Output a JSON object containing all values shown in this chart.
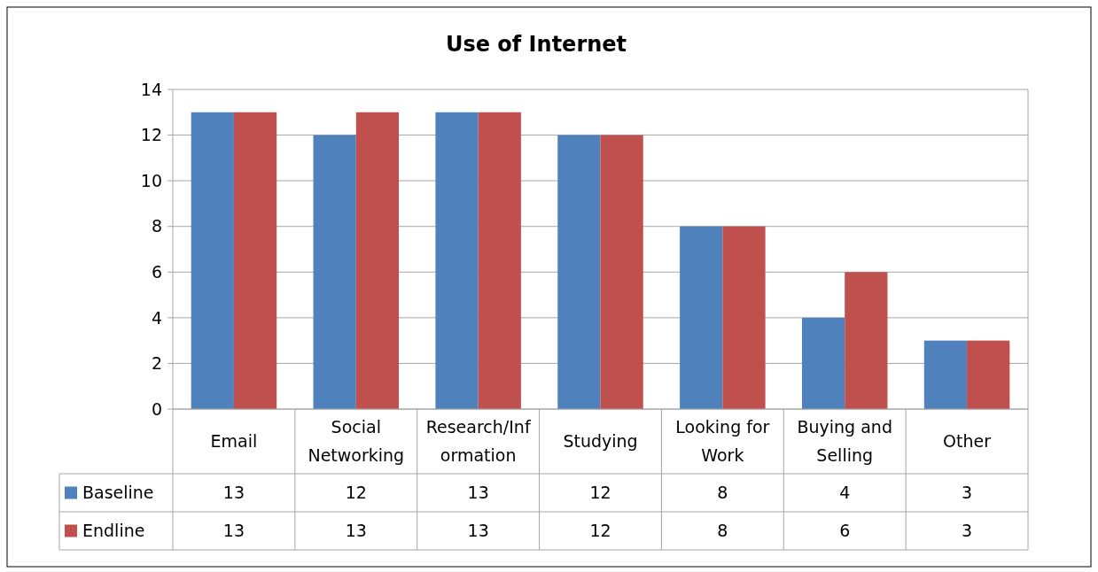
{
  "chart_data": {
    "type": "bar",
    "title": "Use of Internet",
    "categories": [
      "Email",
      "Social Networking",
      "Research/Information",
      "Studying",
      "Looking for Work",
      "Buying and Selling",
      "Other"
    ],
    "series": [
      {
        "name": "Baseline",
        "color": "#4f81bd",
        "values": [
          13,
          12,
          13,
          12,
          8,
          4,
          3
        ]
      },
      {
        "name": "Endline",
        "color": "#c0504d",
        "values": [
          13,
          13,
          13,
          12,
          8,
          6,
          3
        ]
      }
    ],
    "ylim": [
      0,
      14
    ],
    "yticks": [
      0,
      2,
      4,
      6,
      8,
      10,
      12,
      14
    ],
    "grid": "y",
    "legend": "bottom left",
    "data_labels": true
  }
}
